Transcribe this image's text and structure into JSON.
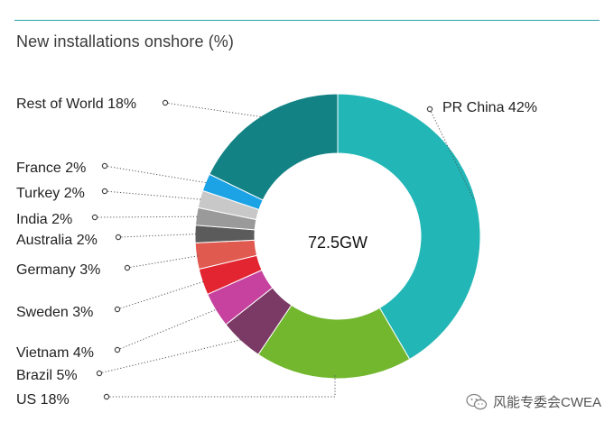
{
  "title": "New installations onshore (%)",
  "chart_data": {
    "type": "pie",
    "donut": true,
    "center_label": "72.5GW",
    "slices": [
      {
        "label": "PR China 42%",
        "value": 42,
        "color": "#22b6b6"
      },
      {
        "label": "US 18%",
        "value": 18,
        "color": "#72b72e"
      },
      {
        "label": "Brazil 5%",
        "value": 5,
        "color": "#7a3a65"
      },
      {
        "label": "Vietnam 4%",
        "value": 4,
        "color": "#c6429e"
      },
      {
        "label": "Sweden 3%",
        "value": 3,
        "color": "#e22530"
      },
      {
        "label": "Germany 3%",
        "value": 3,
        "color": "#e05a50"
      },
      {
        "label": "Australia 2%",
        "value": 2,
        "color": "#5b5b5b"
      },
      {
        "label": "India 2%",
        "value": 2,
        "color": "#9a9a9a"
      },
      {
        "label": "Turkey 2%",
        "value": 2,
        "color": "#c8c8c8"
      },
      {
        "label": "France 2%",
        "value": 2,
        "color": "#1ba3e6"
      },
      {
        "label": "Rest of World 18%",
        "value": 18,
        "color": "#138284"
      }
    ]
  },
  "watermark": {
    "text": "风能专委会CWEA",
    "icon": "wechat-icon"
  }
}
